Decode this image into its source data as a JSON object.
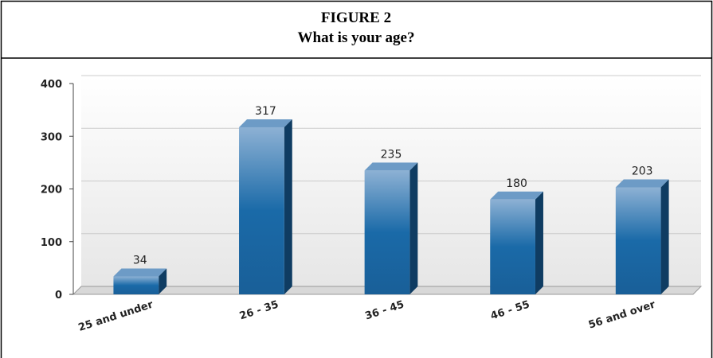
{
  "chart_data": {
    "type": "bar",
    "figure_label": "FIGURE 2",
    "title": "What is your age?",
    "categories": [
      "25 and under",
      "26 - 35",
      "36 - 45",
      "46 - 55",
      "56 and over"
    ],
    "values": [
      34,
      317,
      235,
      180,
      203
    ],
    "color": "#1a6aa8",
    "ylim": [
      0,
      400
    ],
    "yticks": [
      0,
      100,
      200,
      300,
      400
    ],
    "grid": true
  }
}
